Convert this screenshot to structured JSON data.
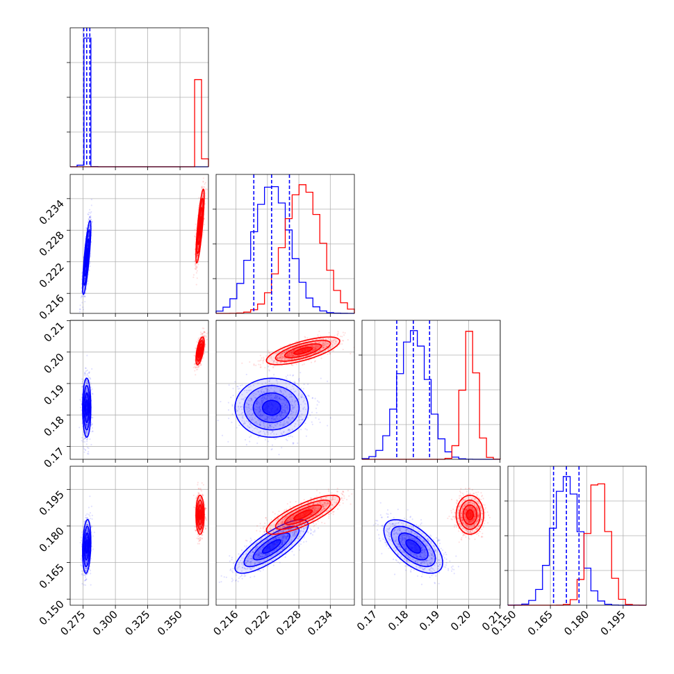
{
  "chart_data": {
    "type": "corner",
    "parameters": [
      {
        "ticks": [
          0.275,
          0.3,
          0.325,
          0.35
        ],
        "tick_labels": [
          "0.275",
          "0.300",
          "0.325",
          "0.350"
        ],
        "range": [
          0.265,
          0.372
        ]
      },
      {
        "ticks": [
          0.216,
          0.222,
          0.228,
          0.234
        ],
        "tick_labels": [
          "0.216",
          "0.222",
          "0.228",
          "0.234"
        ],
        "range": [
          0.2122,
          0.2386
        ]
      },
      {
        "ticks": [
          0.17,
          0.18,
          0.19,
          0.2,
          0.21
        ],
        "tick_labels": [
          "0.17",
          "0.18",
          "0.19",
          "0.20",
          "0.21"
        ],
        "range": [
          0.1659,
          0.2101
        ]
      },
      {
        "ticks": [
          0.15,
          0.165,
          0.18,
          0.195
        ],
        "tick_labels": [
          "0.150",
          "0.165",
          "0.180",
          "0.195"
        ],
        "range": [
          0.1475,
          0.2045
        ]
      }
    ],
    "series": [
      {
        "color": "#0000ff",
        "mean": [
          0.2778,
          0.2228,
          0.1823,
          0.1716
        ],
        "sd": [
          0.0016,
          0.0035,
          0.0047,
          0.0055
        ],
        "rho": [
          [
            1,
            0.8,
            0.0,
            0.2
          ],
          [
            0.8,
            1,
            0.0,
            0.8
          ],
          [
            0.0,
            0.0,
            1,
            -0.6
          ],
          [
            0.2,
            0.8,
            -0.6,
            1
          ]
        ]
      },
      {
        "color": "#ff0000",
        "mean": [
          0.3655,
          0.2288,
          0.2004,
          0.1846
        ],
        "sd": [
          0.0016,
          0.0035,
          0.0022,
          0.004
        ],
        "rho": [
          [
            1,
            0.8,
            0.6,
            0.0
          ],
          [
            0.8,
            1,
            0.7,
            0.8
          ],
          [
            0.6,
            0.7,
            1,
            0.0
          ],
          [
            0.0,
            0.8,
            0.0,
            1
          ]
        ]
      }
    ],
    "quantiles": {
      "color": "#0000ff",
      "values": [
        [
          0.2755,
          0.2778,
          0.2802
        ],
        [
          0.2194,
          0.2228,
          0.2262
        ],
        [
          0.177,
          0.1823,
          0.1875
        ],
        [
          0.1663,
          0.1716,
          0.1768
        ]
      ]
    },
    "contour_levels": [
      0.5,
      1.0,
      1.5,
      2.0
    ],
    "grid": true
  }
}
